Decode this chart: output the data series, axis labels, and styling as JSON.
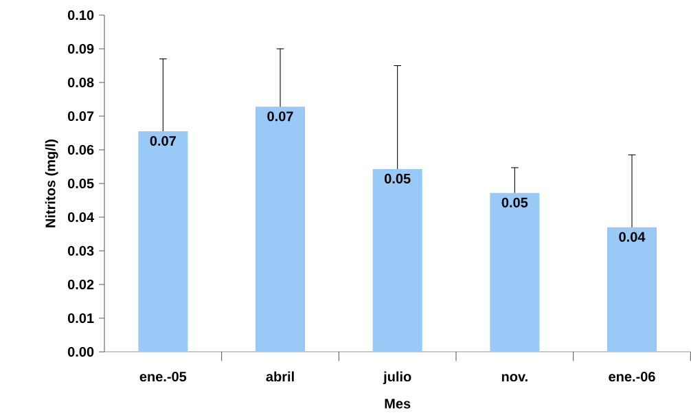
{
  "chart_data": {
    "type": "bar",
    "xlabel": "Mes",
    "ylabel": "Nitritos (mg/l)",
    "categories": [
      "ene.-05",
      "abril",
      "julio",
      "nov.",
      "ene.-06"
    ],
    "values": [
      0.0655,
      0.0728,
      0.0543,
      0.0472,
      0.037
    ],
    "errors": [
      [
        0.0655,
        0.087
      ],
      [
        0.0728,
        0.09
      ],
      [
        0.0543,
        0.085
      ],
      [
        0.0472,
        0.0547
      ],
      [
        0.037,
        0.0585
      ]
    ],
    "value_labels": [
      "0.07",
      "0.07",
      "0.05",
      "0.05",
      "0.04"
    ],
    "color": "#99c9f7",
    "ylim": [
      0,
      0.1
    ],
    "yticks": [
      {
        "value": 0,
        "label": "0.00"
      },
      {
        "value": 0.01,
        "label": "0.01"
      },
      {
        "value": 0.02,
        "label": "0.02"
      },
      {
        "value": 0.03,
        "label": "0.03"
      },
      {
        "value": 0.04,
        "label": "0.04"
      },
      {
        "value": 0.05,
        "label": "0.05"
      },
      {
        "value": 0.06,
        "label": "0.06"
      },
      {
        "value": 0.07,
        "label": "0.07"
      },
      {
        "value": 0.08,
        "label": "0.08"
      },
      {
        "value": 0.09,
        "label": "0.09"
      },
      {
        "value": 0.1,
        "label": "0.10"
      }
    ],
    "grid": false
  }
}
